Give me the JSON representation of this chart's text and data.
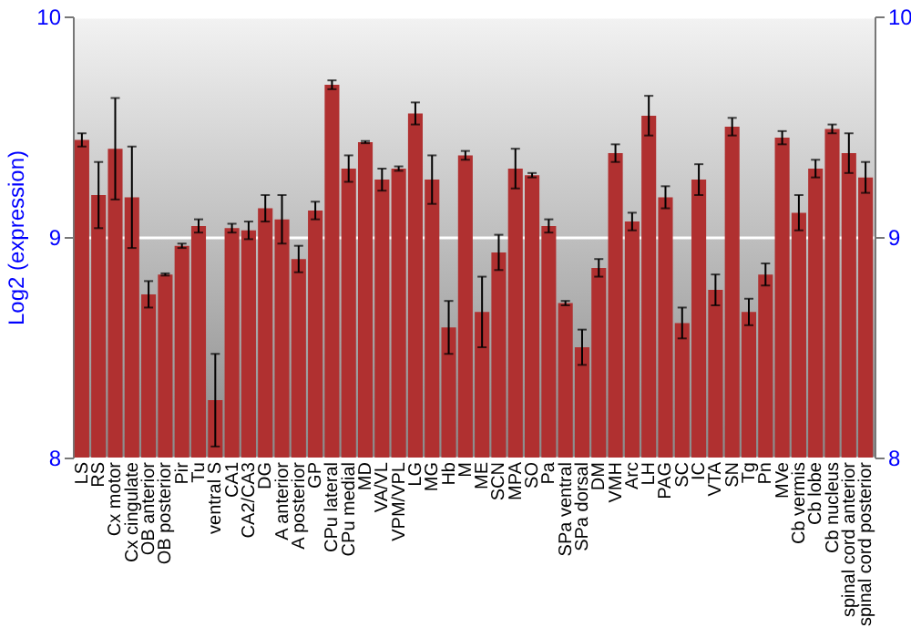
{
  "chart_data": {
    "type": "bar",
    "ylabel": "Log2 (expression)",
    "categories": [
      "LS",
      "RS",
      "Cx motor",
      "Cx cingulate",
      "OB anterior",
      "OB posterior",
      "Pir",
      "Tu",
      "ventral S",
      "CA1",
      "CA2/CA3",
      "DG",
      "A anterior",
      "A posterior",
      "GP",
      "CPu lateral",
      "CPu medial",
      "MD",
      "VA/VL",
      "VPM/VPL",
      "LG",
      "MG",
      "Hb",
      "M",
      "ME",
      "SCN",
      "MPA",
      "SO",
      "Pa",
      "SPa ventral",
      "SPa dorsal",
      "DM",
      "VMH",
      "Arc",
      "LH",
      "PAG",
      "SC",
      "IC",
      "VTA",
      "SN",
      "Tg",
      "Pn",
      "MVe",
      "Cb vermis",
      "Cb lobe",
      "Cb nucleus",
      "spinal cord anterior",
      "spinal cord posterior"
    ],
    "values": [
      9.44,
      9.19,
      9.4,
      9.18,
      8.74,
      8.83,
      8.96,
      9.05,
      8.26,
      9.04,
      9.03,
      9.13,
      9.08,
      8.9,
      9.12,
      9.69,
      9.31,
      9.43,
      9.26,
      9.31,
      9.56,
      9.26,
      8.59,
      9.37,
      8.66,
      8.93,
      9.31,
      9.28,
      9.05,
      8.7,
      8.5,
      8.86,
      9.38,
      9.07,
      9.55,
      9.18,
      8.61,
      9.26,
      8.76,
      9.5,
      8.66,
      8.83,
      9.45,
      9.11,
      9.31,
      9.49,
      9.38,
      9.27
    ],
    "errors": [
      0.03,
      0.15,
      0.23,
      0.23,
      0.06,
      0.005,
      0.01,
      0.03,
      0.21,
      0.02,
      0.04,
      0.06,
      0.11,
      0.06,
      0.04,
      0.02,
      0.06,
      0.005,
      0.05,
      0.01,
      0.05,
      0.11,
      0.12,
      0.02,
      0.16,
      0.08,
      0.09,
      0.01,
      0.03,
      0.01,
      0.08,
      0.04,
      0.04,
      0.04,
      0.09,
      0.05,
      0.07,
      0.07,
      0.07,
      0.04,
      0.06,
      0.05,
      0.03,
      0.08,
      0.04,
      0.02,
      0.09,
      0.07
    ],
    "color": "#b03030",
    "ylim": [
      8,
      10
    ],
    "yticks": [
      8,
      9,
      10
    ],
    "y2lim": [
      8,
      10
    ],
    "y2ticks": [
      8,
      9,
      10
    ],
    "grid": "y"
  }
}
